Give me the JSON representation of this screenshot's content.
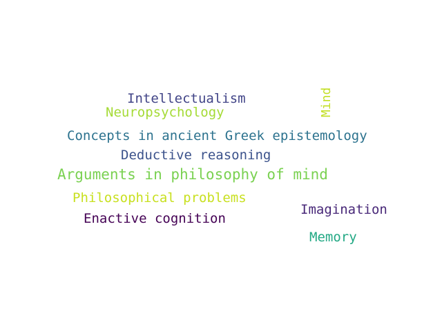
{
  "words": [
    {
      "text": "Intellectualism",
      "color": "#414487",
      "rotated": false
    },
    {
      "text": "Neuropsychology",
      "color": "#a5db36",
      "rotated": false
    },
    {
      "text": "Mind",
      "color": "#c2df23",
      "rotated": true
    },
    {
      "text": "Concepts in ancient Greek epistemology",
      "color": "#2c728e",
      "rotated": false
    },
    {
      "text": "Deductive reasoning",
      "color": "#3b528b",
      "rotated": false
    },
    {
      "text": "Arguments in philosophy of mind",
      "color": "#7ad151",
      "rotated": false
    },
    {
      "text": "Philosophical problems",
      "color": "#c8e020",
      "rotated": false
    },
    {
      "text": "Imagination",
      "color": "#482878",
      "rotated": false
    },
    {
      "text": "Enactive cognition",
      "color": "#440154",
      "rotated": false
    },
    {
      "text": "Memory",
      "color": "#22a884",
      "rotated": false
    }
  ]
}
